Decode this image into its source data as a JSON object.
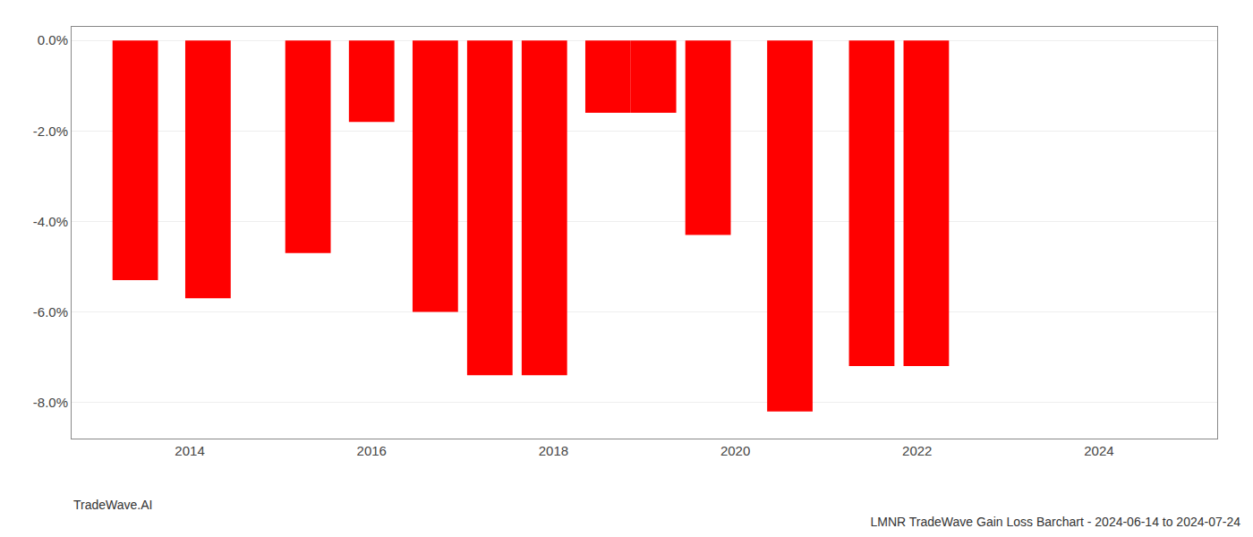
{
  "chart_data": {
    "type": "bar",
    "title": "LMNR TradeWave Gain Loss Barchart - 2024-06-14 to 2024-07-24",
    "annotations": [
      "TradeWave.AI"
    ],
    "x": [
      2013.4,
      2014.2,
      2015.3,
      2016.0,
      2016.7,
      2017.3,
      2017.9,
      2018.6,
      2019.1,
      2019.7,
      2020.6,
      2021.5,
      2022.1,
      2022.8,
      2023.5,
      2024.2
    ],
    "values": [
      -0.053,
      -0.057,
      -0.047,
      -0.018,
      -0.06,
      -0.074,
      -0.074,
      -0.016,
      -0.016,
      -0.043,
      -0.082,
      -0.072,
      -0.072,
      -0.0,
      -0.0,
      -0.0
    ],
    "color": "#ff0000",
    "xlim": [
      2012.7,
      2025.3
    ],
    "xticks": [
      2014,
      2016,
      2018,
      2020,
      2022,
      2024
    ],
    "ylim": [
      -0.088,
      0.003
    ],
    "yticks": [
      {
        "value": 0.0,
        "label": "0.0%"
      },
      {
        "value": -0.02,
        "label": "-2.0%"
      },
      {
        "value": -0.04,
        "label": "-4.0%"
      },
      {
        "value": -0.06,
        "label": "-6.0%"
      },
      {
        "value": -0.08,
        "label": "-8.0%"
      }
    ],
    "grid": true
  }
}
